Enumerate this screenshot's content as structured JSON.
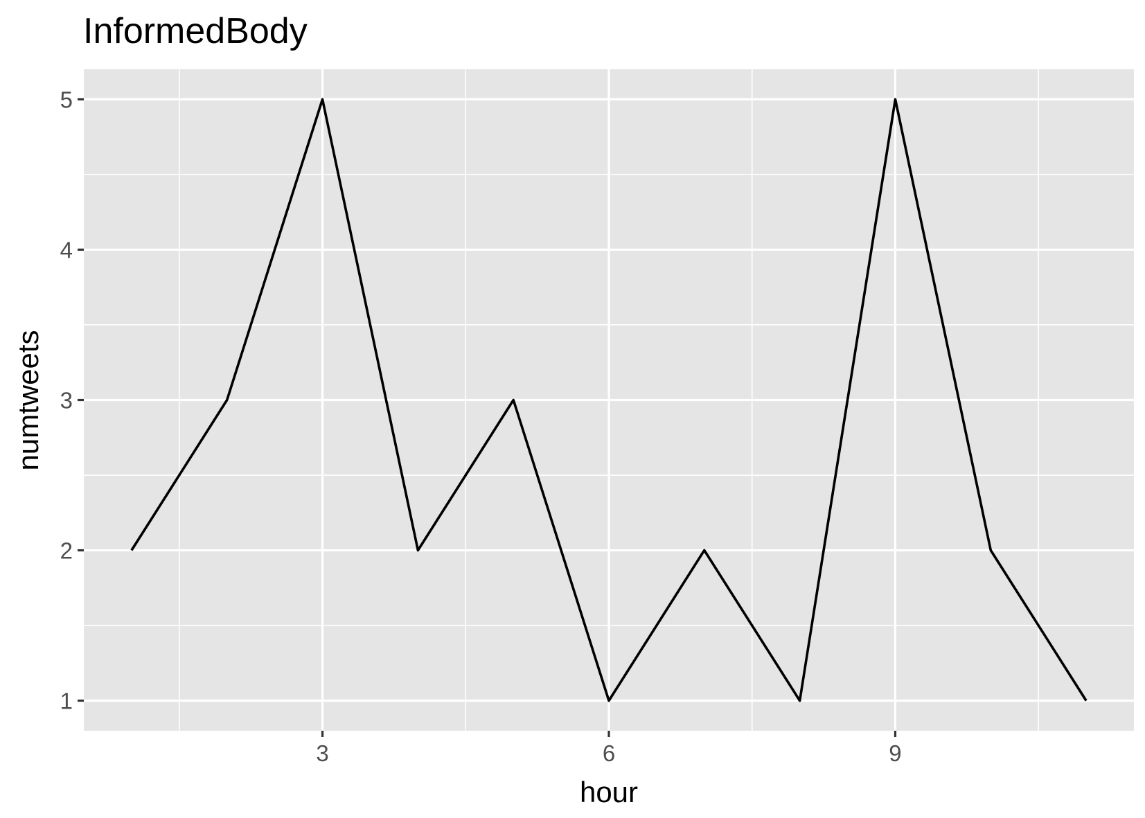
{
  "chart_data": {
    "type": "line",
    "title": "InformedBody",
    "xlabel": "hour",
    "ylabel": "numtweets",
    "x": [
      1,
      2,
      3,
      4,
      5,
      6,
      7,
      8,
      9,
      10,
      11
    ],
    "series": [
      {
        "values": [
          2,
          3,
          5,
          2,
          3,
          1,
          2,
          1,
          5,
          2,
          1
        ]
      }
    ],
    "xlim": [
      0.5,
      11.5
    ],
    "ylim": [
      0.8,
      5.2
    ],
    "x_ticks": [
      3,
      6,
      9
    ],
    "x_tick_labels": [
      "3",
      "6",
      "9"
    ],
    "y_ticks": [
      1,
      2,
      3,
      4,
      5
    ],
    "y_tick_labels": [
      "1",
      "2",
      "3",
      "4",
      "5"
    ],
    "x_minor_ticks": [
      1.5,
      4.5,
      7.5,
      10.5
    ],
    "y_minor_ticks": [
      1.5,
      2.5,
      3.5,
      4.5
    ],
    "grid": true,
    "legend": "none",
    "colors": {
      "panel": "#e5e5e5",
      "grid": "#ffffff",
      "line": "#000000",
      "tick_text": "#4d4d4d"
    }
  }
}
